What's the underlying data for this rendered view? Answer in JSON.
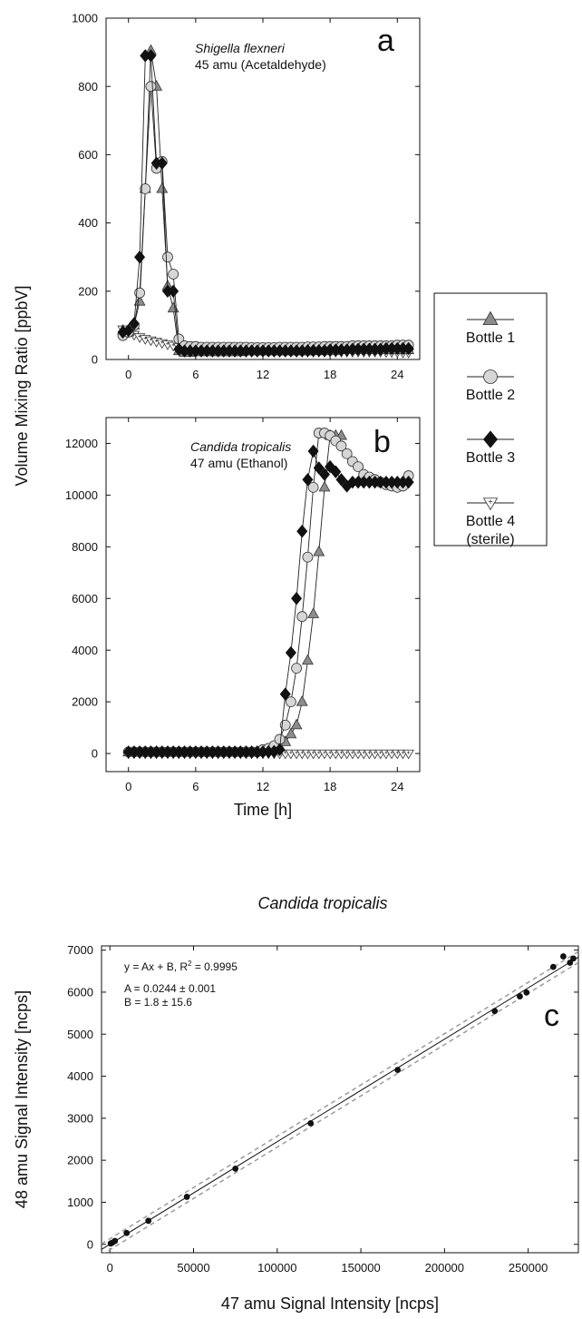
{
  "figure": {
    "shared_ylabel": "Volume Mixing Ratio [ppbV]",
    "legend": [
      {
        "label": "Bottle 1",
        "marker": "triangle-up"
      },
      {
        "label": "Bottle 2",
        "marker": "circle"
      },
      {
        "label": "Bottle 3",
        "marker": "diamond"
      },
      {
        "label": "Bottle 4",
        "label2": "(sterile)",
        "marker": "triangle-down-plus"
      }
    ],
    "colors": {
      "bottle1": "#8c8c8c",
      "bottle2": "#d6d6d6",
      "bottle3": "#111111",
      "bottle4": "#ffffff",
      "fit_line": "#111111",
      "conf_band": "#9a9a9a"
    }
  },
  "chart_data": [
    {
      "panel": "a",
      "type": "line",
      "title_italic": "Shigella flexneri",
      "title": "45 amu (Acetaldehyde)",
      "xlabel": "",
      "ylabel": "",
      "xlim": [
        -2,
        26
      ],
      "ylim": [
        0,
        1000
      ],
      "xticks": [
        0,
        6,
        12,
        18,
        24
      ],
      "yticks": [
        0,
        200,
        400,
        600,
        800,
        1000
      ],
      "series": [
        {
          "name": "Bottle 1",
          "x": [
            -0.5,
            0,
            0.5,
            1,
            1.5,
            2,
            2.5,
            3,
            3.5,
            4,
            4.5,
            5,
            5.5,
            6,
            6.5,
            7,
            7.5,
            8,
            8.5,
            9,
            9.5,
            10,
            10.5,
            11,
            11.5,
            12,
            12.5,
            13,
            13.5,
            14,
            14.5,
            15,
            15.5,
            16,
            16.5,
            17,
            17.5,
            18,
            18.5,
            19,
            19.5,
            20,
            20.5,
            21,
            21.5,
            22,
            22.5,
            23,
            23.5,
            24,
            24.5,
            25
          ],
          "y": [
            85,
            80,
            100,
            170,
            500,
            905,
            800,
            500,
            215,
            150,
            25,
            20,
            20,
            22,
            22,
            22,
            22,
            22,
            22,
            22,
            22,
            22,
            24,
            24,
            24,
            24,
            24,
            24,
            24,
            24,
            24,
            24,
            24,
            24,
            25,
            25,
            25,
            25,
            25,
            28,
            28,
            28,
            28,
            28,
            28,
            28,
            28,
            28,
            28,
            28,
            28,
            28
          ]
        },
        {
          "name": "Bottle 2",
          "x": [
            -0.5,
            0,
            0.5,
            1,
            1.5,
            2,
            2.5,
            3,
            3.5,
            4,
            4.5,
            5,
            5.5,
            6,
            6.5,
            7,
            7.5,
            8,
            8.5,
            9,
            9.5,
            10,
            10.5,
            11,
            11.5,
            12,
            12.5,
            13,
            13.5,
            14,
            14.5,
            15,
            15.5,
            16,
            16.5,
            17,
            17.5,
            18,
            18.5,
            19,
            19.5,
            20,
            20.5,
            21,
            21.5,
            22,
            22.5,
            23,
            23.5,
            24,
            24.5,
            25
          ],
          "y": [
            70,
            80,
            100,
            195,
            500,
            800,
            560,
            580,
            300,
            250,
            60,
            40,
            38,
            38,
            36,
            36,
            36,
            36,
            36,
            36,
            36,
            36,
            36,
            35,
            35,
            35,
            35,
            35,
            36,
            36,
            36,
            36,
            36,
            37,
            37,
            37,
            38,
            38,
            38,
            38,
            38,
            40,
            40,
            40,
            40,
            40,
            40,
            40,
            40,
            42,
            42,
            42
          ]
        },
        {
          "name": "Bottle 3",
          "x": [
            -0.5,
            0,
            0.5,
            1,
            1.5,
            2,
            2.5,
            3,
            3.5,
            4,
            4.5,
            5,
            5.5,
            6,
            6.5,
            7,
            7.5,
            8,
            8.5,
            9,
            9.5,
            10,
            10.5,
            11,
            11.5,
            12,
            12.5,
            13,
            13.5,
            14,
            14.5,
            15,
            15.5,
            16,
            16.5,
            17,
            17.5,
            18,
            18.5,
            19,
            19.5,
            20,
            20.5,
            21,
            21.5,
            22,
            22.5,
            23,
            23.5,
            24,
            24.5,
            25
          ],
          "y": [
            80,
            85,
            105,
            300,
            890,
            890,
            575,
            575,
            200,
            200,
            30,
            25,
            25,
            25,
            25,
            25,
            25,
            25,
            25,
            25,
            25,
            25,
            25,
            25,
            25,
            25,
            25,
            25,
            25,
            25,
            25,
            25,
            25,
            26,
            26,
            26,
            26,
            28,
            28,
            28,
            28,
            30,
            30,
            30,
            30,
            30,
            30,
            32,
            32,
            32,
            32,
            32
          ]
        },
        {
          "name": "Bottle 4 (sterile)",
          "x": [
            -0.5,
            0,
            0.5,
            1,
            1.5,
            2,
            2.5,
            3,
            3.5,
            4,
            4.5,
            5,
            5.5,
            6,
            6.5,
            7,
            7.5,
            8,
            8.5,
            9,
            9.5,
            10,
            10.5,
            11,
            11.5,
            12,
            12.5,
            13,
            13.5,
            14,
            14.5,
            15,
            15.5,
            16,
            16.5,
            17,
            17.5,
            18,
            18.5,
            19,
            19.5,
            20,
            20.5,
            21,
            21.5,
            22,
            22.5,
            23,
            23.5,
            24,
            24.5,
            25
          ],
          "y": [
            88,
            80,
            72,
            65,
            60,
            56,
            52,
            48,
            44,
            40,
            36,
            33,
            30,
            30,
            28,
            28,
            27,
            27,
            26,
            26,
            25,
            25,
            24,
            24,
            24,
            24,
            24,
            23,
            23,
            23,
            23,
            22,
            22,
            22,
            22,
            22,
            22,
            22,
            22,
            22,
            22,
            22,
            22,
            22,
            22,
            22,
            22,
            21,
            21,
            21,
            20,
            20
          ]
        }
      ]
    },
    {
      "panel": "b",
      "type": "line",
      "title_italic": "Candida tropicalis",
      "title": "47 amu (Ethanol)",
      "xlabel": "Time [h]",
      "ylabel": "",
      "xlim": [
        -2,
        26
      ],
      "ylim": [
        -700,
        13000
      ],
      "xticks": [
        0,
        6,
        12,
        18,
        24
      ],
      "yticks": [
        0,
        2000,
        4000,
        6000,
        8000,
        10000,
        12000
      ],
      "series": [
        {
          "name": "Bottle 1",
          "x": [
            0,
            0.5,
            1,
            1.5,
            2,
            2.5,
            3,
            3.5,
            4,
            4.5,
            5,
            5.5,
            6,
            6.5,
            7,
            7.5,
            8,
            8.5,
            9,
            9.5,
            10,
            10.5,
            11,
            11.5,
            12,
            12.5,
            13,
            13.5,
            14,
            14.5,
            15,
            15.5,
            16,
            16.5,
            17,
            17.5,
            18,
            18.5,
            19
          ],
          "y": [
            50,
            50,
            50,
            50,
            50,
            50,
            50,
            50,
            50,
            50,
            50,
            50,
            50,
            50,
            50,
            50,
            50,
            50,
            50,
            50,
            60,
            60,
            60,
            70,
            80,
            100,
            150,
            250,
            450,
            750,
            1100,
            2000,
            3600,
            5400,
            7800,
            10300,
            12300,
            12300,
            12300
          ]
        },
        {
          "name": "Bottle 2",
          "x": [
            0,
            0.5,
            1,
            1.5,
            2,
            2.5,
            3,
            3.5,
            4,
            4.5,
            5,
            5.5,
            6,
            6.5,
            7,
            7.5,
            8,
            8.5,
            9,
            9.5,
            10,
            10.5,
            11,
            11.5,
            12,
            12.5,
            13,
            13.5,
            14,
            14.5,
            15,
            15.5,
            16,
            16.5,
            17,
            17.5,
            18,
            18.5,
            19,
            19.5,
            20,
            20.5,
            21,
            21.5,
            22,
            22.5,
            23,
            23.5,
            24,
            24.5,
            25
          ],
          "y": [
            60,
            60,
            60,
            60,
            60,
            60,
            60,
            60,
            60,
            60,
            60,
            60,
            60,
            60,
            60,
            60,
            60,
            60,
            60,
            60,
            60,
            60,
            60,
            60,
            150,
            200,
            300,
            550,
            1100,
            2000,
            3300,
            5300,
            7600,
            10300,
            12400,
            12400,
            12300,
            12100,
            11900,
            11600,
            11300,
            11100,
            10800,
            10700,
            10600,
            10500,
            10400,
            10350,
            10300,
            10350,
            10750
          ]
        },
        {
          "name": "Bottle 3",
          "x": [
            0,
            0.5,
            1,
            1.5,
            2,
            2.5,
            3,
            3.5,
            4,
            4.5,
            5,
            5.5,
            6,
            6.5,
            7,
            7.5,
            8,
            8.5,
            9,
            9.5,
            10,
            10.5,
            11,
            11.5,
            12,
            12.5,
            13,
            13.5,
            14,
            14.5,
            15,
            15.5,
            16,
            16.5,
            17,
            17.5,
            18,
            18.5,
            19,
            19.5,
            20,
            20.5,
            21,
            21.5,
            22,
            22.5,
            23,
            23.5,
            24,
            24.5,
            25
          ],
          "y": [
            60,
            60,
            60,
            60,
            60,
            60,
            60,
            60,
            60,
            60,
            60,
            60,
            60,
            60,
            60,
            60,
            60,
            60,
            60,
            60,
            60,
            60,
            60,
            60,
            60,
            70,
            80,
            150,
            2300,
            3900,
            6000,
            8600,
            10600,
            11700,
            11050,
            10800,
            11100,
            10900,
            10600,
            10350,
            10500,
            10500,
            10500,
            10500,
            10500,
            10500,
            10500,
            10500,
            10500,
            10500,
            10500
          ]
        },
        {
          "name": "Bottle 4 (sterile)",
          "x": [
            0,
            0.5,
            1,
            1.5,
            2,
            2.5,
            3,
            3.5,
            4,
            4.5,
            5,
            5.5,
            6,
            6.5,
            7,
            7.5,
            8,
            8.5,
            9,
            9.5,
            10,
            10.5,
            11,
            11.5,
            12,
            12.5,
            13,
            13.5,
            14,
            14.5,
            15,
            15.5,
            16,
            16.5,
            17,
            17.5,
            18,
            18.5,
            19,
            19.5,
            20,
            20.5,
            21,
            21.5,
            22,
            22.5,
            23,
            23.5,
            24,
            24.5,
            25
          ],
          "y": [
            0,
            0,
            0,
            0,
            0,
            0,
            0,
            0,
            0,
            0,
            0,
            0,
            0,
            0,
            0,
            0,
            0,
            0,
            0,
            0,
            0,
            0,
            0,
            0,
            0,
            0,
            0,
            0,
            0,
            0,
            0,
            0,
            0,
            0,
            0,
            0,
            0,
            0,
            0,
            0,
            0,
            0,
            0,
            0,
            0,
            0,
            0,
            0,
            0,
            0,
            0
          ]
        }
      ]
    },
    {
      "panel": "c",
      "type": "scatter",
      "title": "Candida tropicalis",
      "xlabel": "47 amu Signal Intensity [ncps]",
      "ylabel": "48 amu Signal Intensity [ncps]",
      "xlim": [
        -5000,
        280000
      ],
      "ylim": [
        -200,
        7100
      ],
      "xticks": [
        0,
        50000,
        100000,
        150000,
        200000,
        250000
      ],
      "yticks": [
        0,
        1000,
        2000,
        3000,
        4000,
        5000,
        6000,
        7000
      ],
      "annotations": {
        "equation": "y = Ax + B,  R",
        "equation_sup": "2",
        "r2_value": " = 0.9995",
        "param_a": "A = 0.0244 ± 0.001",
        "param_b": "B = 1.8 ± 15.6"
      },
      "fit": {
        "slope": 0.0244,
        "intercept": 1.8,
        "band_offset": 130
      },
      "points": {
        "x": [
          500,
          1500,
          3000,
          10000,
          23000,
          46000,
          75000,
          120000,
          172000,
          230000,
          245000,
          249000,
          265000,
          271000,
          275000,
          277000
        ],
        "y": [
          20,
          40,
          80,
          270,
          560,
          1130,
          1800,
          2880,
          4150,
          5550,
          5900,
          5990,
          6600,
          6850,
          6700,
          6800
        ]
      }
    }
  ]
}
